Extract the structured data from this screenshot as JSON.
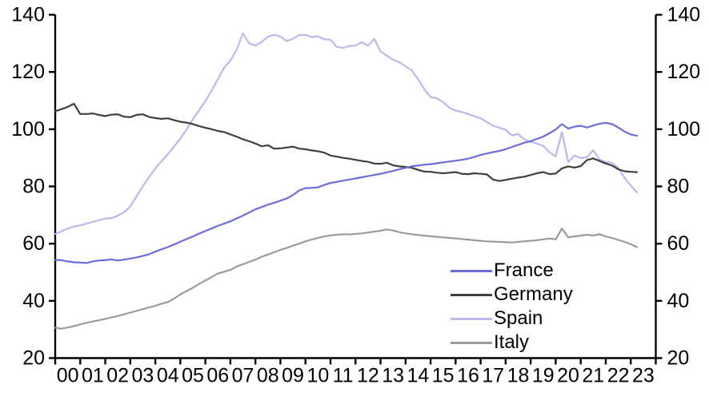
{
  "chart_data": {
    "type": "line",
    "title": "",
    "x_start_year": 2000,
    "x_step_years": 0.25,
    "grid": false,
    "legend": {
      "position": "inside-bottom-right"
    },
    "x_axis": {
      "tick_labels": [
        "00",
        "01",
        "02",
        "03",
        "04",
        "05",
        "06",
        "07",
        "08",
        "09",
        "10",
        "11",
        "12",
        "13",
        "14",
        "15",
        "16",
        "17",
        "18",
        "19",
        "20",
        "21",
        "22",
        "23"
      ]
    },
    "y_axis": {
      "ticks": [
        20,
        40,
        60,
        80,
        100,
        120,
        140
      ],
      "range": [
        20,
        140
      ],
      "sides": "both"
    },
    "axis_color": "#000000",
    "series": [
      {
        "name": "France",
        "color": "#6c6cdb",
        "values": [
          54.3,
          54.2,
          53.8,
          53.5,
          53.4,
          53.2,
          53.8,
          54.1,
          54.2,
          54.5,
          54.1,
          54.4,
          54.8,
          55.2,
          55.7,
          56.3,
          57.2,
          58.0,
          58.8,
          59.7,
          60.7,
          61.6,
          62.5,
          63.5,
          64.4,
          65.3,
          66.2,
          67.0,
          67.8,
          68.8,
          69.8,
          70.9,
          72.0,
          72.8,
          73.6,
          74.3,
          75.0,
          75.8,
          77.0,
          78.6,
          79.4,
          79.5,
          79.7,
          80.5,
          81.2,
          81.6,
          82.0,
          82.4,
          82.8,
          83.2,
          83.6,
          84.0,
          84.4,
          84.9,
          85.4,
          86.0,
          86.5,
          87.0,
          87.3,
          87.6,
          87.8,
          88.1,
          88.4,
          88.7,
          89.0,
          89.3,
          89.7,
          90.3,
          91.0,
          91.5,
          92.0,
          92.4,
          93.0,
          93.8,
          94.5,
          95.3,
          95.8,
          96.6,
          97.4,
          98.6,
          99.9,
          101.8,
          100.2,
          100.9,
          101.2,
          100.6,
          101.3,
          101.9,
          102.2,
          101.8,
          100.6,
          99.2,
          98.2,
          97.7
        ]
      },
      {
        "name": "Germany",
        "color": "#3f3f3f",
        "values": [
          106.3,
          107.0,
          107.8,
          108.9,
          105.3,
          105.3,
          105.5,
          105.0,
          104.6,
          105.1,
          105.2,
          104.4,
          104.2,
          105.0,
          105.2,
          104.3,
          103.9,
          103.6,
          103.8,
          103.2,
          102.6,
          102.3,
          101.8,
          101.1,
          100.5,
          100.0,
          99.4,
          99.0,
          98.2,
          97.4,
          96.5,
          95.8,
          95.0,
          94.0,
          94.4,
          93.2,
          93.3,
          93.6,
          93.9,
          93.2,
          93.0,
          92.6,
          92.3,
          91.8,
          90.8,
          90.4,
          90.0,
          89.7,
          89.3,
          88.9,
          88.6,
          88.0,
          87.9,
          88.3,
          87.4,
          87.0,
          86.8,
          86.5,
          85.8,
          85.2,
          85.1,
          84.8,
          84.6,
          84.8,
          85.0,
          84.4,
          84.3,
          84.6,
          84.4,
          84.2,
          82.4,
          81.9,
          82.3,
          82.7,
          83.1,
          83.4,
          84.0,
          84.6,
          85.0,
          84.3,
          84.5,
          86.3,
          87.0,
          86.6,
          87.1,
          89.2,
          89.8,
          88.9,
          88.0,
          87.3,
          86.0,
          85.3,
          85.1,
          85.0
        ]
      },
      {
        "name": "Spain",
        "color": "#b9b9ef",
        "values": [
          63.4,
          64.3,
          65.3,
          66.0,
          66.4,
          67.0,
          67.6,
          68.2,
          68.8,
          68.9,
          69.8,
          71.0,
          73.0,
          76.5,
          80.0,
          83.3,
          86.3,
          88.8,
          91.3,
          93.9,
          96.7,
          100.0,
          103.5,
          106.6,
          109.8,
          113.5,
          117.5,
          121.5,
          124.0,
          127.8,
          133.5,
          130.0,
          129.2,
          130.5,
          132.3,
          133.0,
          132.4,
          130.8,
          131.6,
          132.9,
          133.0,
          132.2,
          132.5,
          131.4,
          131.3,
          128.8,
          128.4,
          129.1,
          129.2,
          130.4,
          129.2,
          131.6,
          127.2,
          125.7,
          124.3,
          123.4,
          122.0,
          120.6,
          117.5,
          114.0,
          111.2,
          110.8,
          109.5,
          107.5,
          106.5,
          106.0,
          105.3,
          104.5,
          103.8,
          102.5,
          101.2,
          100.5,
          99.8,
          97.8,
          98.3,
          96.5,
          95.6,
          95.0,
          94.2,
          92.0,
          90.5,
          99.0,
          88.5,
          90.8,
          89.9,
          90.2,
          92.7,
          89.4,
          88.5,
          88.3,
          86.5,
          83.0,
          80.3,
          77.9
        ]
      },
      {
        "name": "Italy",
        "color": "#9b9b9b",
        "values": [
          30.6,
          30.3,
          30.7,
          31.2,
          31.8,
          32.3,
          32.8,
          33.2,
          33.7,
          34.2,
          34.7,
          35.3,
          35.9,
          36.5,
          37.1,
          37.7,
          38.3,
          39.0,
          39.6,
          40.8,
          42.3,
          43.4,
          44.6,
          45.9,
          47.1,
          48.3,
          49.6,
          50.2,
          50.8,
          52.0,
          52.8,
          53.6,
          54.4,
          55.4,
          56.2,
          57.0,
          57.8,
          58.5,
          59.3,
          60.0,
          60.8,
          61.4,
          62.0,
          62.5,
          62.9,
          63.1,
          63.3,
          63.2,
          63.4,
          63.6,
          63.9,
          64.2,
          64.5,
          65.0,
          64.6,
          64.0,
          63.6,
          63.3,
          63.0,
          62.8,
          62.6,
          62.4,
          62.2,
          62.0,
          61.8,
          61.6,
          61.4,
          61.2,
          61.0,
          60.8,
          60.7,
          60.6,
          60.5,
          60.4,
          60.6,
          60.8,
          61.0,
          61.2,
          61.5,
          61.8,
          61.5,
          65.3,
          62.2,
          62.5,
          62.8,
          63.1,
          62.8,
          63.3,
          62.5,
          62.0,
          61.3,
          60.6,
          59.8,
          58.8
        ]
      }
    ]
  }
}
